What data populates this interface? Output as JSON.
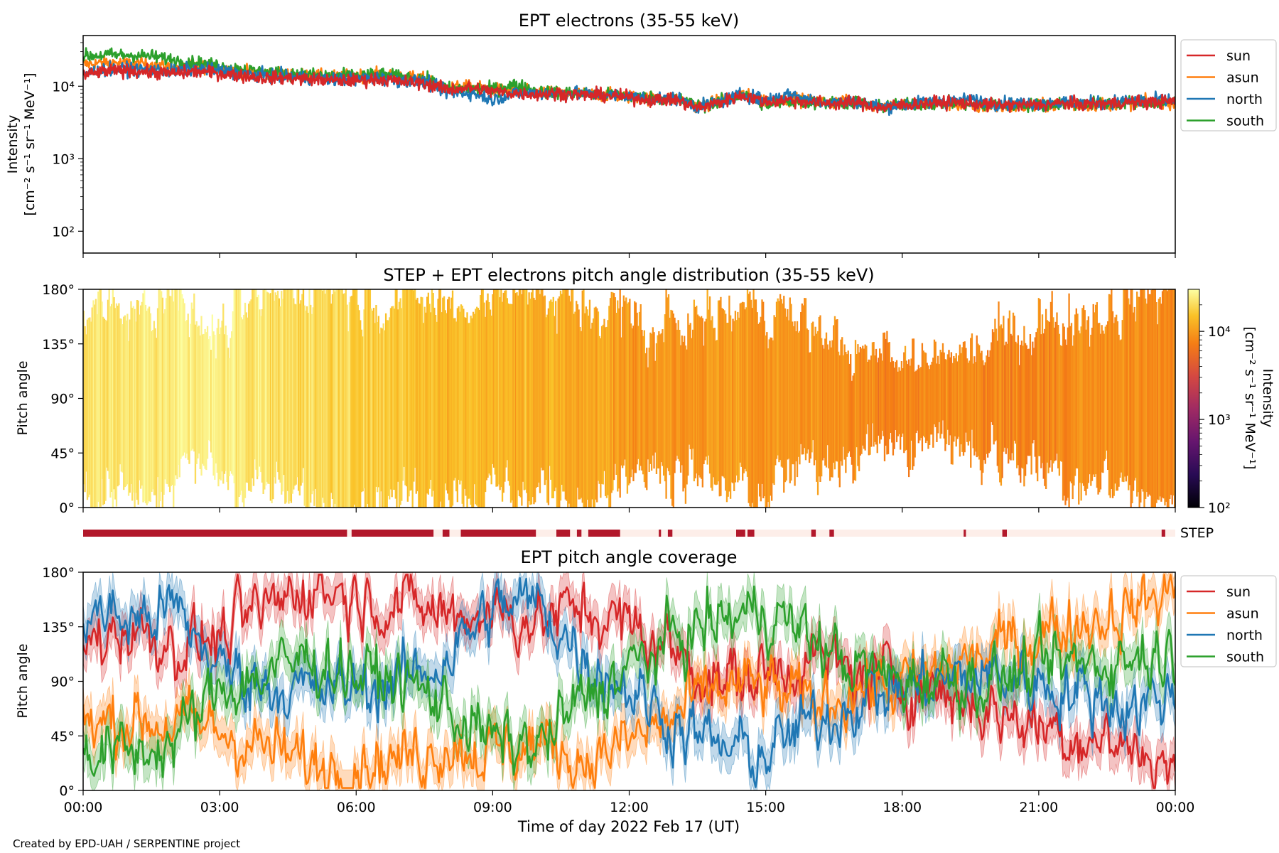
{
  "footer": "Created by EPD-UAH / SERPENTINE project",
  "xaxis_label": "Time of day 2022 Feb 17 (UT)",
  "xticks": [
    "00:00",
    "03:00",
    "06:00",
    "09:00",
    "12:00",
    "15:00",
    "18:00",
    "21:00",
    "00:00"
  ],
  "colors": {
    "sun": "#d62728",
    "asun": "#ff7f0e",
    "north": "#1f77b4",
    "south": "#2ca02c",
    "step_bar": "#b2182b",
    "step_gap": "#fdeee9"
  },
  "chart_data": [
    {
      "type": "line",
      "title": "EPT electrons (35-55 keV)",
      "ylabel_line1": "Intensity",
      "ylabel_line2": "[cm⁻² s⁻¹ sr⁻¹ MeV⁻¹]",
      "yscale": "log",
      "ylim": [
        50,
        50000
      ],
      "yticks": [
        "10²",
        "10³",
        "10⁴"
      ],
      "x_unit": "hours",
      "xlim": [
        0,
        24
      ],
      "legend": "top-right",
      "series": [
        {
          "name": "sun",
          "key": "sun",
          "x": [
            0,
            0.5,
            1,
            1.5,
            2,
            2.5,
            3,
            3.5,
            4,
            4.5,
            5,
            5.5,
            6,
            6.5,
            7,
            7.5,
            8,
            8.5,
            9,
            9.5,
            10,
            10.5,
            11,
            11.5,
            12,
            12.5,
            13,
            13.5,
            14,
            14.5,
            15,
            15.5,
            16,
            16.5,
            17,
            17.5,
            18,
            18.5,
            19,
            19.5,
            20,
            20.5,
            21,
            21.5,
            22,
            22.5,
            23,
            23.5,
            24
          ],
          "y": [
            14000,
            16000,
            16500,
            15500,
            15000,
            16000,
            15000,
            14000,
            13000,
            13000,
            12500,
            12000,
            12000,
            12500,
            11500,
            11000,
            9000,
            9500,
            8500,
            8000,
            7800,
            8000,
            7500,
            7500,
            7000,
            6500,
            6500,
            5000,
            6000,
            7500,
            6000,
            6500,
            6000,
            5800,
            6000,
            5000,
            5500,
            5800,
            6000,
            5800,
            5500,
            5500,
            5500,
            5800,
            5600,
            5800,
            6000,
            6000,
            6200
          ]
        },
        {
          "name": "asun",
          "key": "asun",
          "x": [
            0,
            0.5,
            1,
            1.5,
            2,
            2.5,
            3,
            3.5,
            4,
            4.5,
            5,
            5.5,
            6,
            6.5,
            7,
            7.5,
            8,
            8.5,
            9,
            9.5,
            10,
            10.5,
            11,
            11.5,
            12,
            12.5,
            13,
            13.5,
            14,
            14.5,
            15,
            15.5,
            16,
            16.5,
            17,
            17.5,
            18,
            18.5,
            19,
            19.5,
            20,
            20.5,
            21,
            21.5,
            22,
            22.5,
            23,
            23.5,
            24
          ],
          "y": [
            20000,
            21000,
            21000,
            20000,
            18000,
            19000,
            18000,
            16000,
            15000,
            14500,
            14000,
            13500,
            14000,
            14500,
            13500,
            12500,
            9500,
            9800,
            9000,
            8500,
            8200,
            8000,
            7800,
            7600,
            7200,
            6800,
            6800,
            5300,
            6200,
            7600,
            6300,
            6700,
            6200,
            6000,
            6200,
            5300,
            5600,
            5800,
            5800,
            5200,
            5200,
            5200,
            5300,
            5600,
            5500,
            5700,
            5900,
            6000,
            6100
          ]
        },
        {
          "name": "north",
          "key": "north",
          "x": [
            0,
            0.5,
            1,
            1.5,
            2,
            2.5,
            3,
            3.5,
            4,
            4.5,
            5,
            5.5,
            6,
            6.5,
            7,
            7.5,
            8,
            8.5,
            9,
            9.5,
            10,
            10.5,
            11,
            11.5,
            12,
            12.5,
            13,
            13.5,
            14,
            14.5,
            15,
            15.5,
            16,
            16.5,
            17,
            17.5,
            18,
            18.5,
            19,
            19.5,
            20,
            20.5,
            21,
            21.5,
            22,
            22.5,
            23,
            23.5,
            24
          ],
          "y": [
            15000,
            17000,
            17500,
            16500,
            16000,
            17500,
            16500,
            15000,
            14000,
            13500,
            13000,
            12500,
            12500,
            13000,
            12000,
            11500,
            8000,
            8200,
            6500,
            8000,
            8000,
            8200,
            7800,
            7600,
            7200,
            6800,
            6800,
            5200,
            6100,
            7700,
            6400,
            7800,
            6400,
            6000,
            6200,
            5200,
            5500,
            6000,
            6200,
            6500,
            5800,
            5800,
            5800,
            6000,
            5900,
            6000,
            6300,
            6400,
            6500
          ]
        },
        {
          "name": "south",
          "key": "south",
          "x": [
            0,
            0.5,
            1,
            1.5,
            2,
            2.5,
            3,
            3.5,
            4,
            4.5,
            5,
            5.5,
            6,
            6.5,
            7,
            7.5,
            8,
            8.5,
            9,
            9.5,
            10,
            10.5,
            11,
            11.5,
            12,
            12.5,
            13,
            13.5,
            14,
            14.5,
            15,
            15.5,
            16,
            16.5,
            17,
            17.5,
            18,
            18.5,
            19,
            19.5,
            20,
            20.5,
            21,
            21.5,
            22,
            22.5,
            23,
            23.5,
            24
          ],
          "y": [
            26000,
            27000,
            27000,
            26000,
            23000,
            21000,
            19000,
            17000,
            15500,
            15000,
            14500,
            14000,
            14000,
            14500,
            13500,
            12500,
            9200,
            9300,
            9000,
            10500,
            8500,
            8200,
            7900,
            7700,
            7300,
            6900,
            6800,
            5400,
            6000,
            7500,
            5500,
            6200,
            6000,
            5800,
            6000,
            5200,
            5500,
            5700,
            5800,
            5700,
            5500,
            5500,
            5500,
            5800,
            5700,
            5800,
            6000,
            6000,
            6100
          ]
        }
      ]
    },
    {
      "type": "heatmap",
      "title": "STEP + EPT electrons pitch angle distribution (35-55 keV)",
      "ylabel": "Pitch angle",
      "ylim": [
        0,
        180
      ],
      "yticks": [
        "0°",
        "45°",
        "90°",
        "135°",
        "180°"
      ],
      "xlim": [
        0,
        24
      ],
      "colorbar_label": "Intensity",
      "colorbar_units": "[cm⁻² s⁻¹ sr⁻¹ MeV⁻¹]",
      "colorbar_scale": "log",
      "colorbar_range": [
        100,
        30000
      ],
      "colorbar_ticks": [
        "10²",
        "10³",
        "10⁴"
      ],
      "hour_intensity": [
        22000,
        24000,
        25000,
        24000,
        21000,
        19000,
        17000,
        15000,
        14000,
        13000,
        12000,
        11000,
        10000,
        10000,
        9500,
        9000,
        8500,
        8000,
        8000,
        8000,
        8000,
        8200,
        8400,
        8600
      ],
      "coverage": "pitch angle extents from EPT sun/asun/north/south telescopes"
    },
    {
      "type": "bar",
      "label": "STEP",
      "xlim": [
        0,
        24
      ],
      "segments": [
        [
          0,
          5.8
        ],
        [
          5.9,
          7.7
        ],
        [
          7.9,
          8.05
        ],
        [
          8.3,
          9.95
        ],
        [
          10.4,
          10.7
        ],
        [
          10.85,
          10.95
        ],
        [
          11.1,
          11.8
        ],
        [
          12.65,
          12.7
        ],
        [
          12.85,
          12.95
        ],
        [
          14.35,
          14.55
        ],
        [
          14.6,
          14.75
        ],
        [
          16.0,
          16.1
        ],
        [
          16.4,
          16.5
        ],
        [
          19.35,
          19.4
        ],
        [
          20.2,
          20.3
        ],
        [
          23.7,
          23.78
        ]
      ]
    },
    {
      "type": "line",
      "title": "EPT pitch angle coverage",
      "ylabel": "Pitch angle",
      "ylim": [
        0,
        180
      ],
      "yticks": [
        "0°",
        "45°",
        "90°",
        "135°",
        "180°"
      ],
      "xlim": [
        0,
        24
      ],
      "legend": "top-right",
      "band_halfwidth_deg": 15,
      "series": [
        {
          "name": "sun",
          "key": "sun",
          "x": [
            0,
            1,
            2,
            3,
            4,
            5,
            6,
            7,
            8,
            9,
            10,
            11,
            12,
            13,
            14,
            15,
            16,
            17,
            18,
            19,
            20,
            21,
            22,
            23,
            24
          ],
          "y": [
            120,
            135,
            120,
            125,
            150,
            170,
            160,
            155,
            145,
            150,
            140,
            150,
            135,
            115,
            90,
            95,
            110,
            95,
            90,
            80,
            65,
            55,
            45,
            35,
            20
          ]
        },
        {
          "name": "asun",
          "key": "asun",
          "x": [
            0,
            1,
            2,
            3,
            4,
            5,
            6,
            7,
            8,
            9,
            10,
            11,
            12,
            13,
            14,
            15,
            16,
            17,
            18,
            19,
            20,
            21,
            22,
            23,
            24
          ],
          "y": [
            50,
            60,
            55,
            50,
            35,
            20,
            25,
            25,
            40,
            30,
            40,
            25,
            40,
            60,
            85,
            85,
            70,
            85,
            85,
            100,
            115,
            130,
            140,
            150,
            165
          ]
        },
        {
          "name": "north",
          "key": "north",
          "x": [
            0,
            1,
            2,
            3,
            4,
            5,
            6,
            7,
            8,
            9,
            10,
            11,
            12,
            13,
            14,
            15,
            16,
            17,
            18,
            19,
            20,
            21,
            22,
            23,
            24
          ],
          "y": [
            150,
            140,
            150,
            100,
            90,
            80,
            85,
            90,
            110,
            150,
            155,
            110,
            85,
            55,
            35,
            30,
            55,
            75,
            85,
            90,
            95,
            90,
            80,
            70,
            80
          ]
        },
        {
          "name": "south",
          "key": "south",
          "x": [
            0,
            1,
            2,
            3,
            4,
            5,
            6,
            7,
            8,
            9,
            10,
            11,
            12,
            13,
            14,
            15,
            16,
            17,
            18,
            19,
            20,
            21,
            22,
            23,
            24
          ],
          "y": [
            35,
            30,
            40,
            85,
            95,
            110,
            95,
            90,
            70,
            40,
            35,
            75,
            100,
            125,
            140,
            150,
            125,
            100,
            90,
            95,
            90,
            100,
            105,
            110,
            115
          ]
        }
      ]
    }
  ]
}
